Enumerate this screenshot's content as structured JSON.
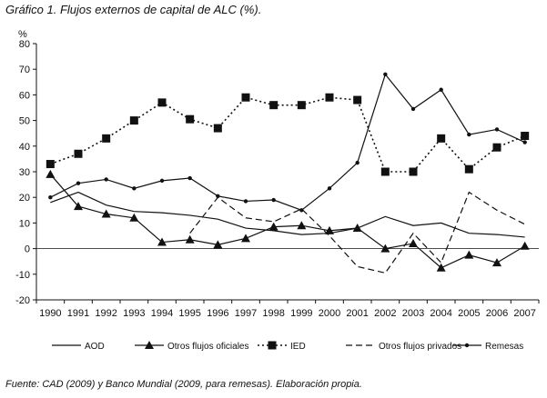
{
  "page": {
    "title": "Gráfico 1. Flujos externos de capital de ALC (%).",
    "source": "Fuente: CAD (2009) y Banco Mundial (2009, para remesas). Elaboración propia."
  },
  "chart_data": {
    "type": "line",
    "title": "Gráfico 1. Flujos externos de capital de ALC (%).",
    "ylabel": "%",
    "xlabel": "",
    "ylim": [
      -20,
      80
    ],
    "yticks": [
      -20,
      -10,
      0,
      10,
      20,
      30,
      40,
      50,
      60,
      70,
      80
    ],
    "categories": [
      "1990",
      "1991",
      "1992",
      "1993",
      "1994",
      "1995",
      "1996",
      "1997",
      "1998",
      "1999",
      "2000",
      "2001",
      "2002",
      "2003",
      "2004",
      "2005",
      "2006",
      "2007"
    ],
    "legend_position": "bottom",
    "series": [
      {
        "name": "AOD",
        "style": "solid",
        "marker": "none",
        "values": [
          18,
          22,
          17,
          14.5,
          14,
          13,
          11.5,
          8,
          7,
          5.5,
          6,
          8,
          12.5,
          9,
          10,
          6,
          5.5,
          4.5
        ]
      },
      {
        "name": "Otros flujos oficiales",
        "style": "solid",
        "marker": "triangle",
        "values": [
          29,
          16.5,
          13.5,
          12,
          2.5,
          3.5,
          1.5,
          4,
          8.5,
          9,
          7,
          8,
          0,
          2,
          -7.5,
          -2.5,
          -5.5,
          1
        ]
      },
      {
        "name": "IED",
        "style": "dotted",
        "marker": "square",
        "values": [
          33,
          37,
          43,
          50,
          57,
          50.5,
          47,
          59,
          56,
          56,
          59,
          58,
          30,
          30,
          43,
          31,
          39.5,
          44
        ]
      },
      {
        "name": "Otros flujos privados",
        "style": "dashed",
        "marker": "none",
        "values": [
          null,
          null,
          null,
          null,
          null,
          6,
          20,
          12,
          10.5,
          15.5,
          5,
          -7,
          -9.5,
          6,
          -5.5,
          22,
          15,
          9.5
        ]
      },
      {
        "name": "Remesas",
        "style": "solid",
        "marker": "dot",
        "values": [
          20,
          25.5,
          27,
          23.5,
          26.5,
          27.5,
          20.5,
          18.5,
          19,
          15,
          23.5,
          33.5,
          68,
          54.5,
          62,
          44.5,
          46.5,
          41.5
        ]
      }
    ]
  }
}
